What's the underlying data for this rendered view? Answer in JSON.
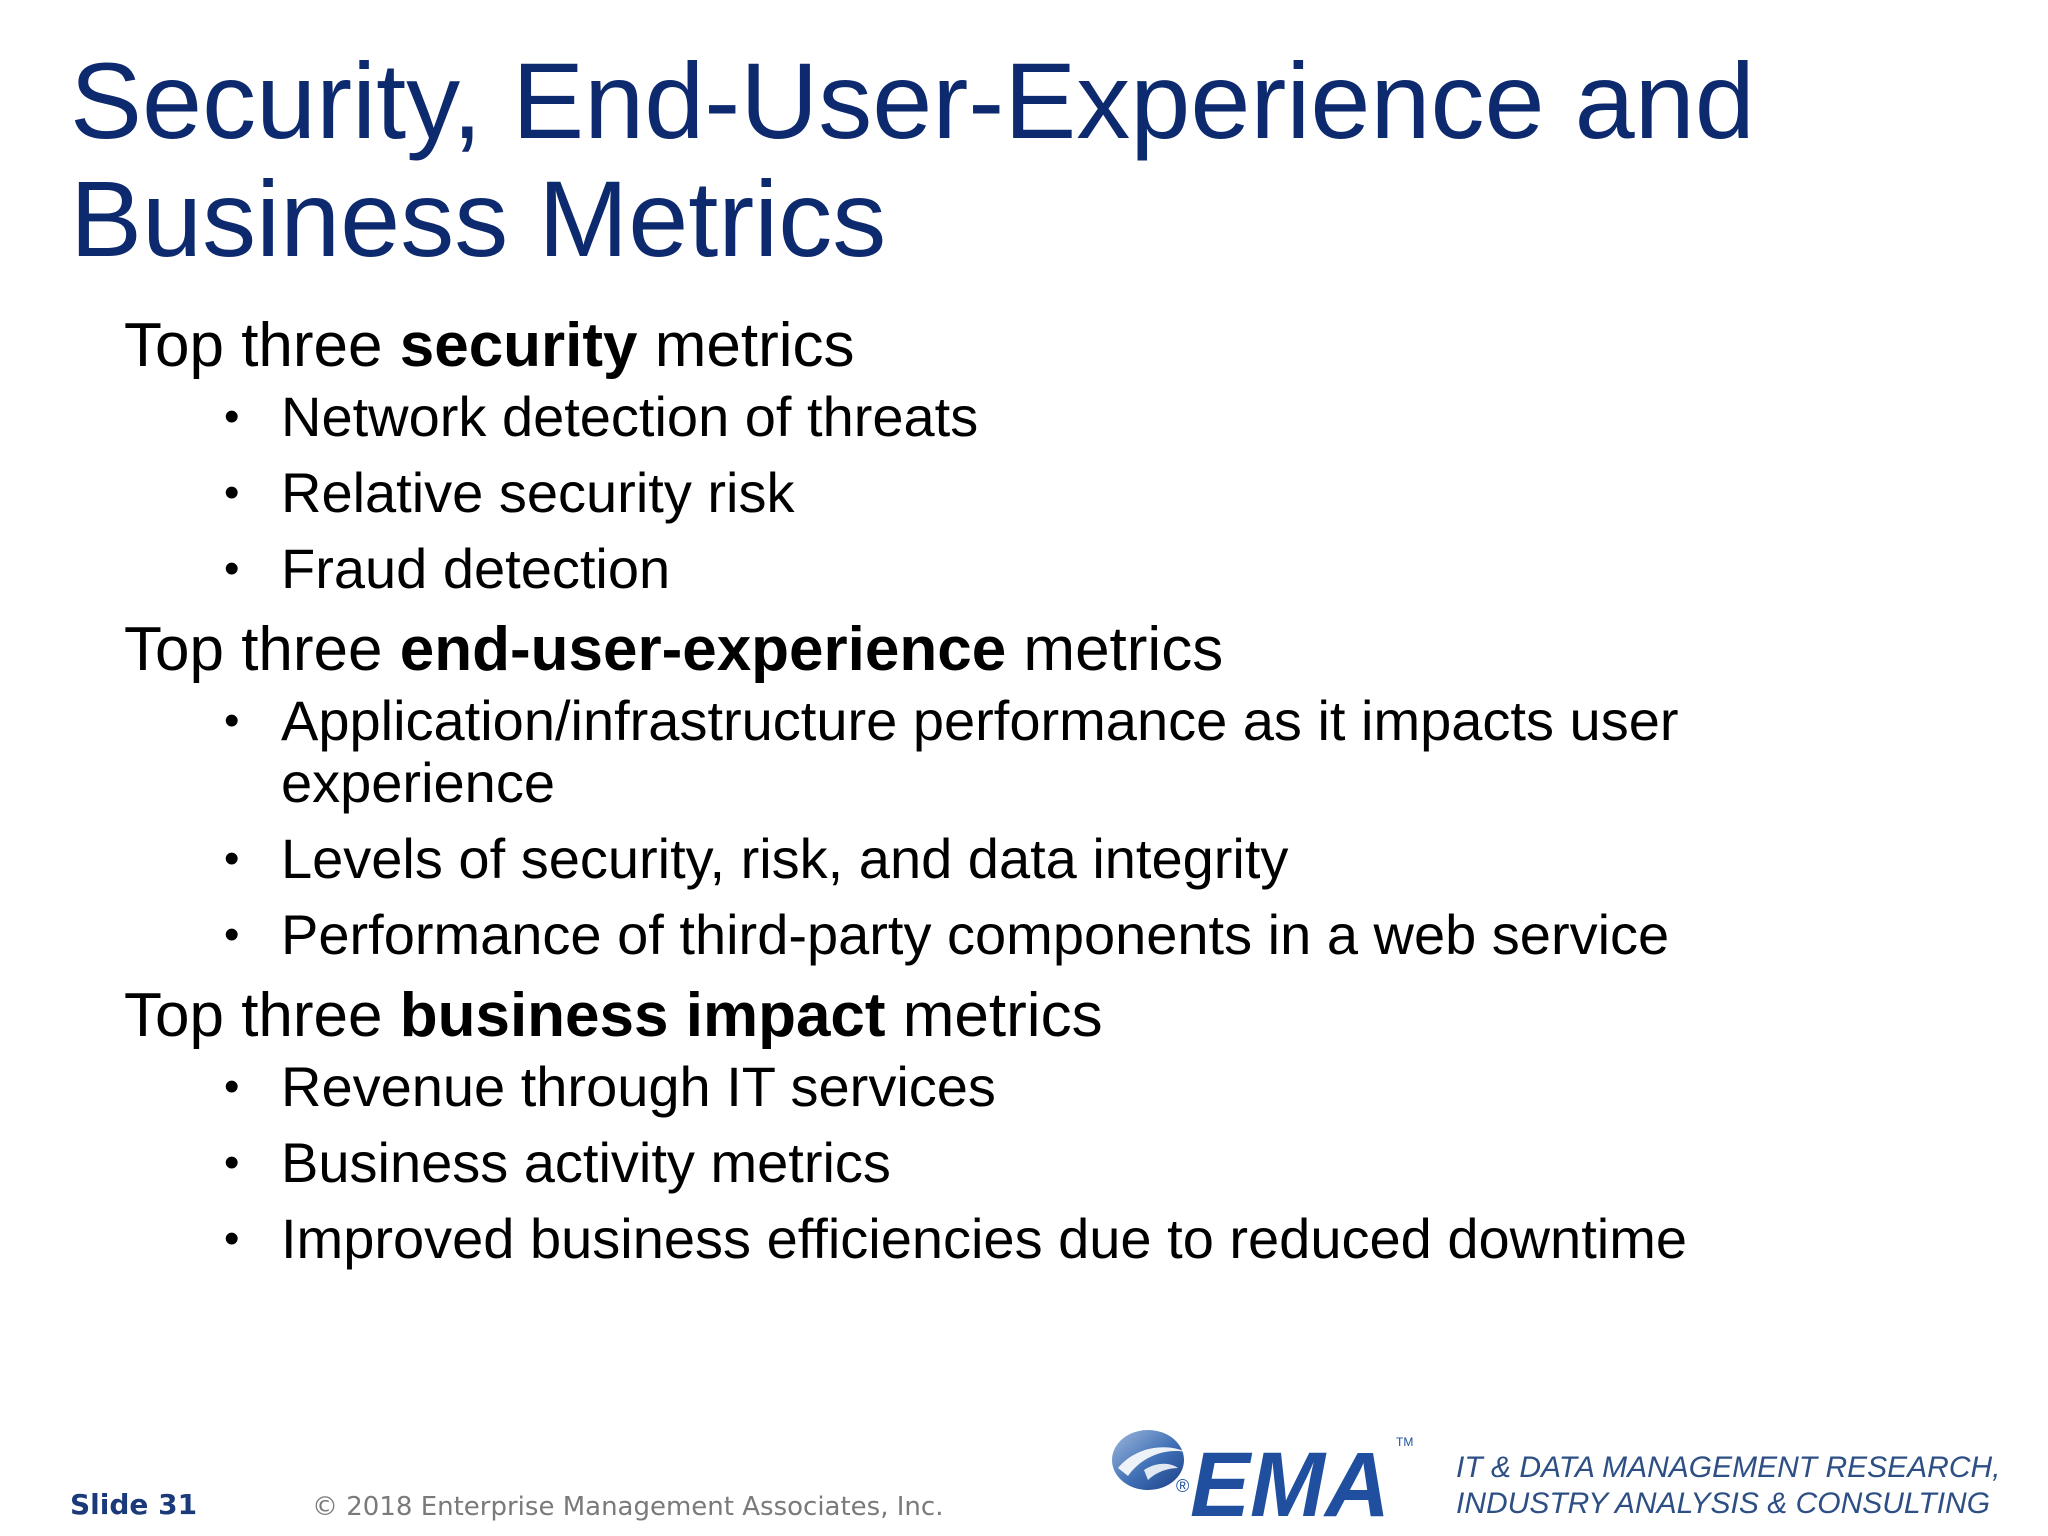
{
  "title": {
    "line1": "Security, End-User-Experience and",
    "line2": "Business Metrics"
  },
  "sections": [
    {
      "prefix": "Top three ",
      "emphasis": "security",
      "suffix": " metrics",
      "items": [
        "Network detection of threats",
        "Relative security risk",
        "Fraud detection"
      ]
    },
    {
      "prefix": "Top three ",
      "emphasis": "end-user-experience",
      "suffix": " metrics",
      "items": [
        "Application/infrastructure performance as it impacts user experience",
        "Levels of security, risk, and data integrity",
        "Performance of third-party components in a web service"
      ]
    },
    {
      "prefix": "Top three ",
      "emphasis": "business impact",
      "suffix": " metrics",
      "items": [
        "Revenue through IT services",
        "Business activity metrics",
        "Improved business efficiencies due to reduced downtime"
      ]
    }
  ],
  "bullet_char": "•",
  "footer": {
    "slide_label": "Slide 31",
    "copyright": "© 2018 Enterprise Management Associates, Inc.",
    "logo_text": "EMA",
    "logo_tm": "TM",
    "logo_registered": "®",
    "logo_icon": "ema-swoosh-icon",
    "tagline_line1": "IT & DATA MANAGEMENT RESEARCH,",
    "tagline_line2": "INDUSTRY ANALYSIS & CONSULTING"
  },
  "colors": {
    "title": "#0e2a6e",
    "logo": "#1f4f9e",
    "tagline": "#2d4f84"
  }
}
